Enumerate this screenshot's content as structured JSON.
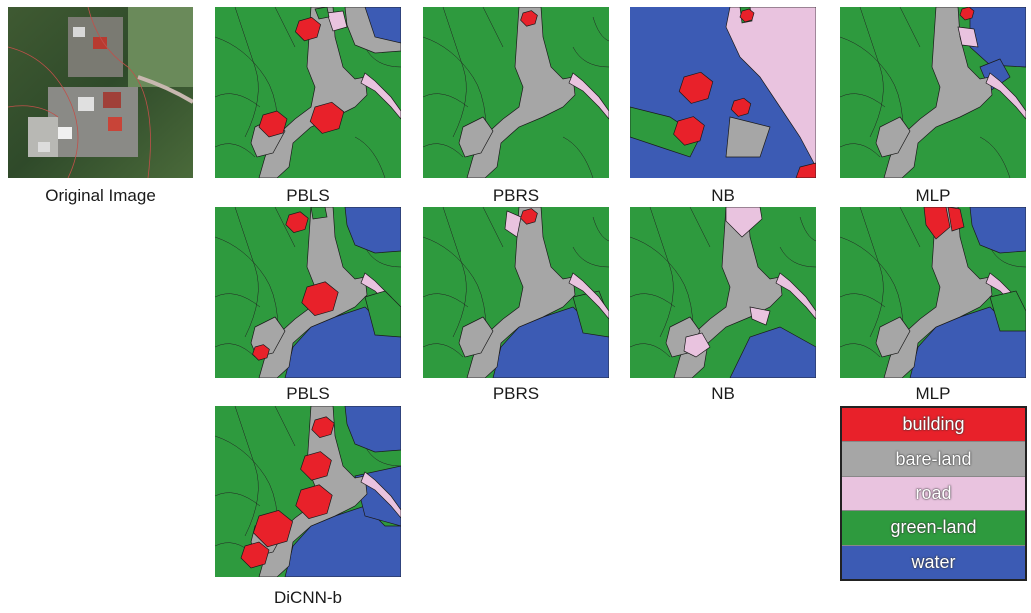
{
  "original": {
    "caption": "Original Image"
  },
  "rows": [
    {
      "panels": [
        {
          "id": "r1-pbls",
          "label": "PBLS",
          "scene": "A"
        },
        {
          "id": "r1-pbrs",
          "label": "PBRS",
          "scene": "B"
        },
        {
          "id": "r1-nb",
          "label": "NB",
          "scene": "C"
        },
        {
          "id": "r1-mlp",
          "label": "MLP",
          "scene": "D"
        }
      ]
    },
    {
      "panels": [
        {
          "id": "r2-pbls",
          "label": "PBLS",
          "scene": "E"
        },
        {
          "id": "r2-pbrs",
          "label": "PBRS",
          "scene": "F"
        },
        {
          "id": "r2-nb",
          "label": "NB",
          "scene": "G"
        },
        {
          "id": "r2-mlp",
          "label": "MLP",
          "scene": "H"
        }
      ]
    },
    {
      "panels": [
        {
          "id": "r3-dicnn",
          "label": "DiCNN-b",
          "scene": "I"
        }
      ]
    }
  ],
  "legend": {
    "items": [
      {
        "label": "building",
        "color": "#e8212a"
      },
      {
        "label": "bare-land",
        "color": "#a6a6a6"
      },
      {
        "label": "road",
        "color": "#e9c3df"
      },
      {
        "label": "green-land",
        "color": "#2e9a3e"
      },
      {
        "label": "water",
        "color": "#3c5bb4"
      }
    ]
  }
}
